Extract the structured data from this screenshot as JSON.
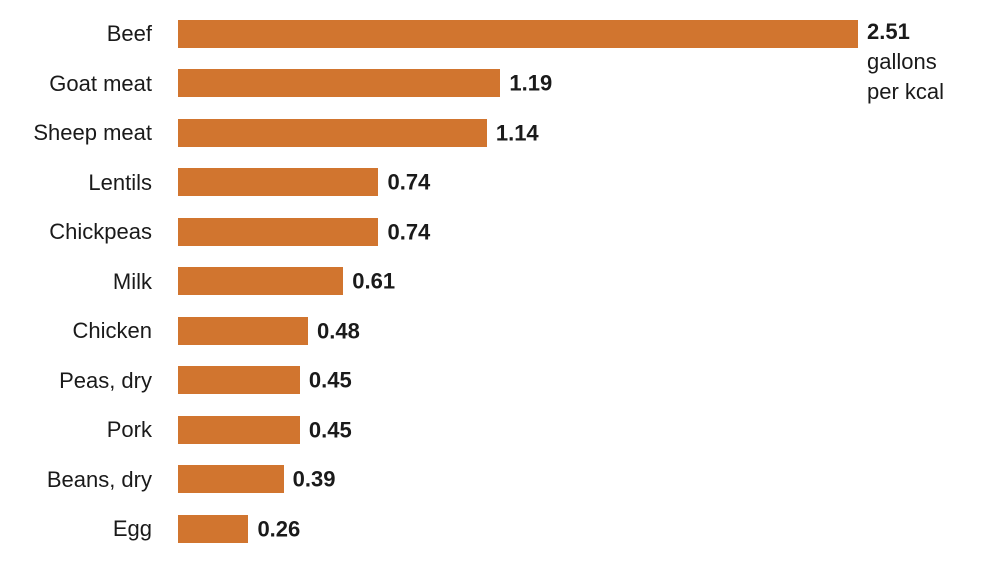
{
  "chart_data": {
    "type": "bar",
    "orientation": "horizontal",
    "title": "",
    "xlabel": "",
    "ylabel": "",
    "categories": [
      "Beef",
      "Goat meat",
      "Sheep meat",
      "Lentils",
      "Chickpeas",
      "Milk",
      "Chicken",
      "Peas, dry",
      "Pork",
      "Beans, dry",
      "Egg"
    ],
    "values": [
      2.51,
      1.19,
      1.14,
      0.74,
      0.74,
      0.61,
      0.48,
      0.45,
      0.45,
      0.39,
      0.26
    ],
    "value_labels": [
      "2.51",
      "1.19",
      "1.14",
      "0.74",
      "0.74",
      "0.61",
      "0.48",
      "0.45",
      "0.45",
      "0.39",
      "0.26"
    ],
    "unit_annotation_lines": [
      "gallons",
      "per kcal"
    ],
    "xlim": [
      0,
      2.51
    ],
    "grid": false,
    "legend": "none",
    "bar_color": "#D1752F",
    "text_color": "#1A1A1A",
    "background_color": "#FFFFFF"
  }
}
